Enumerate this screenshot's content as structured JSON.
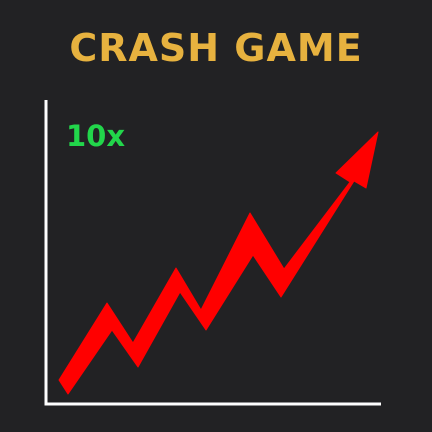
{
  "title": "CRASH GAME",
  "multiplier": "10x",
  "colors": {
    "background": "#222224",
    "title": "#e7b23f",
    "multiplier": "#22d64b",
    "arrow": "#ff0000",
    "axes": "#ffffff"
  },
  "graph": {
    "icon": "rising-zigzag-arrow-icon",
    "trend": "rising"
  }
}
